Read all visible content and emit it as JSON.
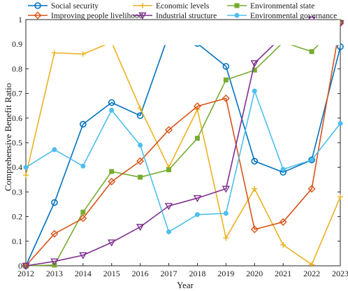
{
  "chart_data": {
    "type": "line",
    "title": "",
    "xlabel": "Year",
    "ylabel": "Comprehensive Benefit Ratio",
    "x": [
      2012,
      2013,
      2014,
      2015,
      2016,
      2017,
      2018,
      2019,
      2020,
      2021,
      2022,
      2023
    ],
    "x_tick_labels": [
      "2012",
      "2013",
      "2014",
      "2015",
      "2016",
      "2017",
      "2018",
      "2019",
      "2020",
      "2021",
      "2022",
      "2023"
    ],
    "ylim": [
      0,
      1
    ],
    "y_ticks": [
      0,
      0.1,
      0.2,
      0.3,
      0.4,
      0.5,
      0.6,
      0.7,
      0.8,
      0.9,
      1
    ],
    "y_tick_labels": [
      "0",
      "0.1",
      "0.2",
      "0.3",
      "0.4",
      "0.5",
      "0.6",
      "0.7",
      "0.8",
      "0.9",
      "1"
    ],
    "grid": false,
    "legend_position": "top",
    "legend_columns": 3,
    "series": [
      {
        "name": "Social security",
        "color": "#0072BD",
        "marker": "circle",
        "values": [
          0,
          0.257,
          0.575,
          0.663,
          0.61,
          0.94,
          0.903,
          0.81,
          0.425,
          0.38,
          0.43,
          0.89
        ]
      },
      {
        "name": "Economic levels",
        "color": "#EDB120",
        "marker": "plus",
        "values": [
          0.368,
          0.865,
          0.86,
          0.908,
          0.64,
          0.4,
          0.635,
          0.113,
          0.313,
          0.085,
          0.005,
          0.28
        ]
      },
      {
        "name": "Environmental state",
        "color": "#77AC30",
        "marker": "square",
        "values": [
          0,
          0.003,
          0.218,
          0.383,
          0.36,
          0.39,
          0.518,
          0.755,
          0.795,
          0.908,
          0.87,
          0.99
        ]
      },
      {
        "name": "Improving people livelihood",
        "color": "#D95319",
        "marker": "diamond",
        "values": [
          0,
          0.13,
          0.193,
          0.342,
          0.425,
          0.552,
          0.648,
          0.68,
          0.148,
          0.178,
          0.313,
          0.985
        ]
      },
      {
        "name": "Industrial structure",
        "color": "#7E2F8E",
        "marker": "triangle-down",
        "values": [
          0,
          0.018,
          0.043,
          0.095,
          0.158,
          0.243,
          0.275,
          0.313,
          0.823,
          0.935,
          1.0,
          0.985
        ]
      },
      {
        "name": "Environmental governance",
        "color": "#4DBEEE",
        "marker": "dot",
        "values": [
          0.4,
          0.472,
          0.405,
          0.632,
          0.49,
          0.138,
          0.208,
          0.213,
          0.71,
          0.392,
          0.43,
          0.578
        ]
      }
    ]
  }
}
